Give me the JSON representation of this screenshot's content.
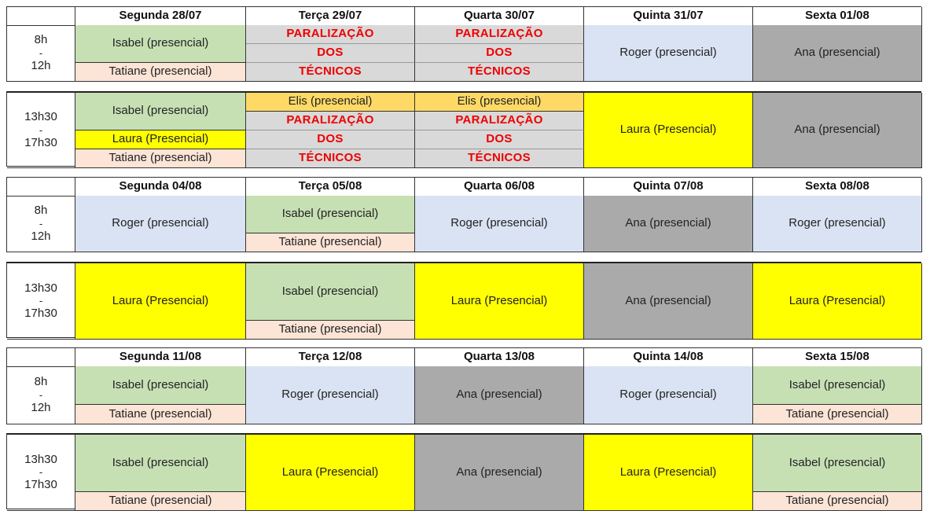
{
  "colors": {
    "isabel": "#c6e0b4",
    "tatiane": "#fce4d6",
    "roger": "#dae3f3",
    "ana": "#aaaaaa",
    "laura": "#ffff00",
    "elis": "#ffd966",
    "strike_bg": "#d9d9d9",
    "strike_text": "#ee0000"
  },
  "weeks": [
    {
      "headers": [
        "Segunda 28/07",
        "Terça 29/07",
        "Quarta 30/07",
        "Quinta 31/07",
        "Sexta 01/08"
      ],
      "morning": {
        "time": [
          "8h",
          "-",
          "12h"
        ],
        "days": [
          [
            {
              "text": "Isabel (presencial)",
              "color": "isabel",
              "h": 2
            },
            {
              "text": "Tatiane (presencial)",
              "color": "tatiane",
              "h": 1
            }
          ],
          [
            {
              "text": "PARALIZAÇÃO",
              "color": "strike_bg",
              "strike": true,
              "h": 1
            },
            {
              "text": "DOS",
              "color": "strike_bg",
              "strike": true,
              "h": 1
            },
            {
              "text": "TÉCNICOS",
              "color": "strike_bg",
              "strike": true,
              "h": 1
            }
          ],
          [
            {
              "text": "PARALIZAÇÃO",
              "color": "strike_bg",
              "strike": true,
              "h": 1
            },
            {
              "text": "DOS",
              "color": "strike_bg",
              "strike": true,
              "h": 1
            },
            {
              "text": "TÉCNICOS",
              "color": "strike_bg",
              "strike": true,
              "h": 1
            }
          ],
          [
            {
              "text": "Roger (presencial)",
              "color": "roger",
              "h": 3
            }
          ],
          [
            {
              "text": "Ana (presencial)",
              "color": "ana",
              "h": 3
            }
          ]
        ]
      },
      "afternoon": {
        "time": [
          "13h30",
          "-",
          "17h30"
        ],
        "days": [
          [
            {
              "text": "Isabel (presencial)",
              "color": "isabel",
              "h": 2
            },
            {
              "text": "Laura (Presencial)",
              "color": "laura",
              "h": 1
            },
            {
              "text": "Tatiane (presencial)",
              "color": "tatiane",
              "h": 1
            }
          ],
          [
            {
              "text": "Elis (presencial)",
              "color": "elis",
              "h": 1
            },
            {
              "text": "PARALIZAÇÃO",
              "color": "strike_bg",
              "strike": true,
              "h": 1
            },
            {
              "text": "DOS",
              "color": "strike_bg",
              "strike": true,
              "h": 1
            },
            {
              "text": "TÉCNICOS",
              "color": "strike_bg",
              "strike": true,
              "h": 1
            }
          ],
          [
            {
              "text": "Elis (presencial)",
              "color": "elis",
              "h": 1
            },
            {
              "text": "PARALIZAÇÃO",
              "color": "strike_bg",
              "strike": true,
              "h": 1
            },
            {
              "text": "DOS",
              "color": "strike_bg",
              "strike": true,
              "h": 1
            },
            {
              "text": "TÉCNICOS",
              "color": "strike_bg",
              "strike": true,
              "h": 1
            }
          ],
          [
            {
              "text": "Laura (Presencial)",
              "color": "laura",
              "h": 4
            }
          ],
          [
            {
              "text": "Ana (presencial)",
              "color": "ana",
              "h": 4
            }
          ]
        ]
      }
    },
    {
      "headers": [
        "Segunda 04/08",
        "Terça 05/08",
        "Quarta 06/08",
        "Quinta 07/08",
        "Sexta 08/08"
      ],
      "morning": {
        "time": [
          "8h",
          "-",
          "12h"
        ],
        "days": [
          [
            {
              "text": "Roger (presencial)",
              "color": "roger",
              "h": 3
            }
          ],
          [
            {
              "text": "Isabel (presencial)",
              "color": "isabel",
              "h": 2
            },
            {
              "text": "Tatiane (presencial)",
              "color": "tatiane",
              "h": 1
            }
          ],
          [
            {
              "text": "Roger (presencial)",
              "color": "roger",
              "h": 3
            }
          ],
          [
            {
              "text": "Ana (presencial)",
              "color": "ana",
              "h": 3
            }
          ],
          [
            {
              "text": "Roger (presencial)",
              "color": "roger",
              "h": 3
            }
          ]
        ]
      },
      "afternoon": {
        "time": [
          "13h30",
          "-",
          "17h30"
        ],
        "days": [
          [
            {
              "text": "Laura (Presencial)",
              "color": "laura",
              "h": 4
            }
          ],
          [
            {
              "text": "Isabel (presencial)",
              "color": "isabel",
              "h": 3
            },
            {
              "text": "Tatiane (presencial)",
              "color": "tatiane",
              "h": 1
            }
          ],
          [
            {
              "text": "Laura (Presencial)",
              "color": "laura",
              "h": 4
            }
          ],
          [
            {
              "text": "Ana (presencial)",
              "color": "ana",
              "h": 4
            }
          ],
          [
            {
              "text": "Laura (Presencial)",
              "color": "laura",
              "h": 4
            }
          ]
        ]
      }
    },
    {
      "headers": [
        "Segunda 11/08",
        "Terça 12/08",
        "Quarta 13/08",
        "Quinta 14/08",
        "Sexta 15/08"
      ],
      "morning": {
        "time": [
          "8h",
          "-",
          "12h"
        ],
        "days": [
          [
            {
              "text": "Isabel (presencial)",
              "color": "isabel",
              "h": 2
            },
            {
              "text": "Tatiane (presencial)",
              "color": "tatiane",
              "h": 1
            }
          ],
          [
            {
              "text": "Roger (presencial)",
              "color": "roger",
              "h": 3
            }
          ],
          [
            {
              "text": "Ana (presencial)",
              "color": "ana",
              "h": 3
            }
          ],
          [
            {
              "text": "Roger (presencial)",
              "color": "roger",
              "h": 3
            }
          ],
          [
            {
              "text": "Isabel (presencial)",
              "color": "isabel",
              "h": 2
            },
            {
              "text": "Tatiane (presencial)",
              "color": "tatiane",
              "h": 1
            }
          ]
        ]
      },
      "afternoon": {
        "time": [
          "13h30",
          "-",
          "17h30"
        ],
        "days": [
          [
            {
              "text": "Isabel (presencial)",
              "color": "isabel",
              "h": 3
            },
            {
              "text": "Tatiane (presencial)",
              "color": "tatiane",
              "h": 1
            }
          ],
          [
            {
              "text": "Laura (Presencial)",
              "color": "laura",
              "h": 4
            }
          ],
          [
            {
              "text": "Ana (presencial)",
              "color": "ana",
              "h": 4
            }
          ],
          [
            {
              "text": "Laura (Presencial)",
              "color": "laura",
              "h": 4
            }
          ],
          [
            {
              "text": "Isabel (presencial)",
              "color": "isabel",
              "h": 3
            },
            {
              "text": "Tatiane (presencial)",
              "color": "tatiane",
              "h": 1
            }
          ]
        ]
      }
    }
  ]
}
